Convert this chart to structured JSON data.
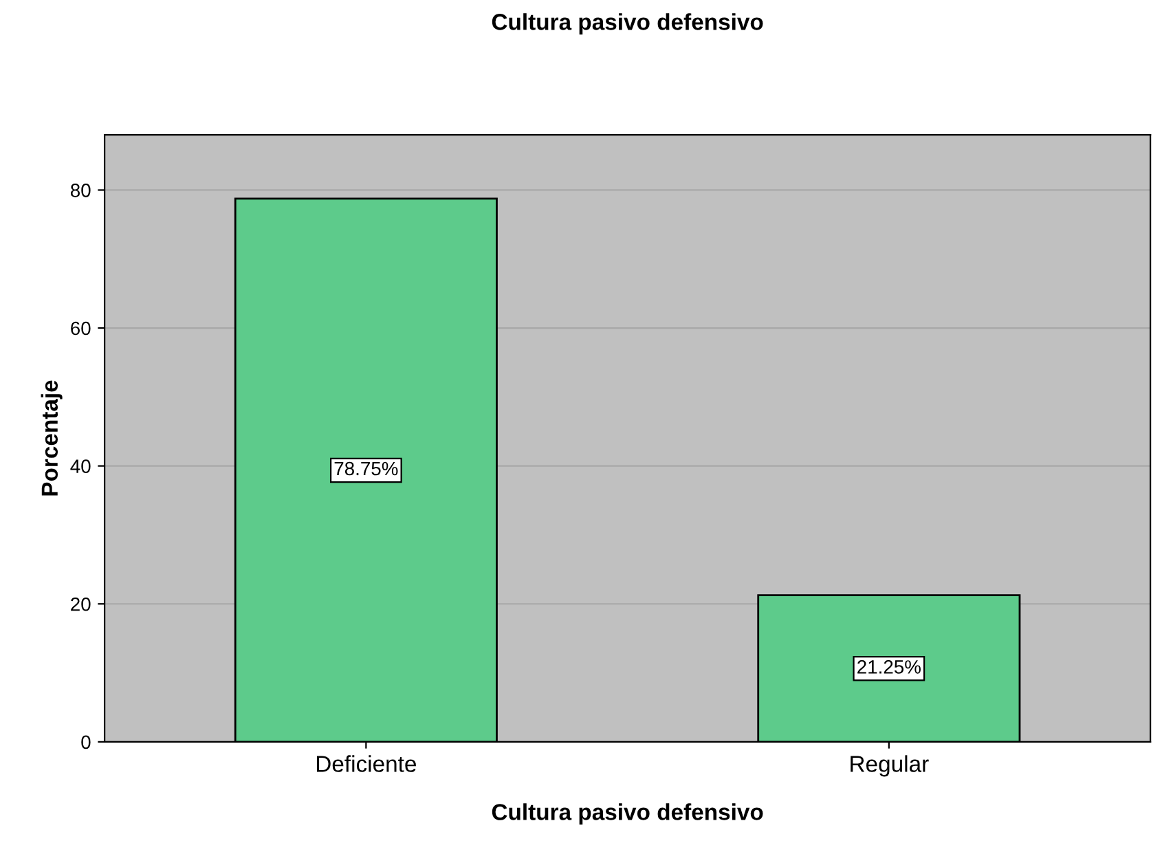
{
  "chart_data": {
    "type": "bar",
    "title": "Cultura pasivo defensivo",
    "xlabel": "Cultura pasivo defensivo",
    "ylabel": "Porcentaje",
    "categories": [
      "Deficiente",
      "Regular"
    ],
    "values": [
      78.75,
      21.25
    ],
    "value_labels": [
      "78.75%",
      "21.25%"
    ],
    "color": "#5dcb8b",
    "ylim": [
      0,
      88
    ],
    "yticks": [
      0,
      20,
      40,
      60,
      80
    ],
    "grid": "y",
    "legend": false
  }
}
